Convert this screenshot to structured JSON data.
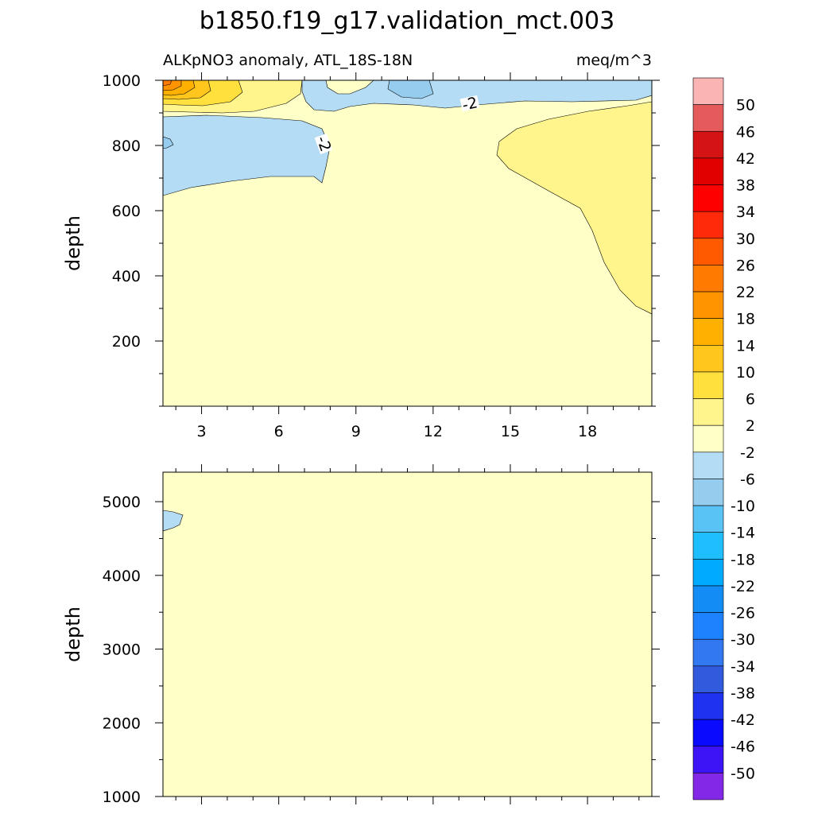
{
  "title": "b1850.f19_g17.validation_mct.003",
  "chart_data": {
    "type": "contour",
    "subtitle_left": "ALKpNO3 anomaly, ATL_18S-18N",
    "subtitle_right": "meq/m^3",
    "ylabel": "depth",
    "x_ticks": [
      "3",
      "6",
      "9",
      "12",
      "15",
      "18"
    ],
    "x_values": [
      3,
      6,
      9,
      12,
      15,
      18
    ],
    "xlim": [
      1.5,
      20.5
    ],
    "upper_panel": {
      "ylim": [
        1000,
        0
      ],
      "y_tick_labels": [
        "200",
        "400",
        "600",
        "800",
        "1000"
      ],
      "y_values": [
        200,
        400,
        600,
        800,
        1000
      ],
      "contour_labels": [
        "-2",
        "-2"
      ]
    },
    "lower_panel": {
      "ylim": [
        5400,
        1000
      ],
      "y_tick_labels": [
        "1000",
        "2000",
        "3000",
        "4000",
        "5000"
      ],
      "y_values": [
        1000,
        2000,
        3000,
        4000,
        5000
      ]
    },
    "colorbar": {
      "labels": [
        "50",
        "46",
        "42",
        "38",
        "34",
        "30",
        "26",
        "22",
        "18",
        "14",
        "10",
        "6",
        "2",
        "-2",
        "-6",
        "-10",
        "-14",
        "-18",
        "-22",
        "-26",
        "-30",
        "-34",
        "-38",
        "-42",
        "-46",
        "-50"
      ],
      "colors": [
        "#fbb4b4",
        "#e55a5a",
        "#d41414",
        "#e00000",
        "#ff0000",
        "#ff2a0a",
        "#ff5a00",
        "#ff7a00",
        "#ff9400",
        "#ffb000",
        "#ffc61e",
        "#ffe03c",
        "#fff58c",
        "#ffffc8",
        "#b4dcf5",
        "#96cdee",
        "#5ac3f5",
        "#1ebeff",
        "#00aaff",
        "#148cf5",
        "#1e82ff",
        "#3278f0",
        "#325adc",
        "#1e32f0",
        "#0a0aff",
        "#3c14f5",
        "#8228e6"
      ]
    }
  }
}
